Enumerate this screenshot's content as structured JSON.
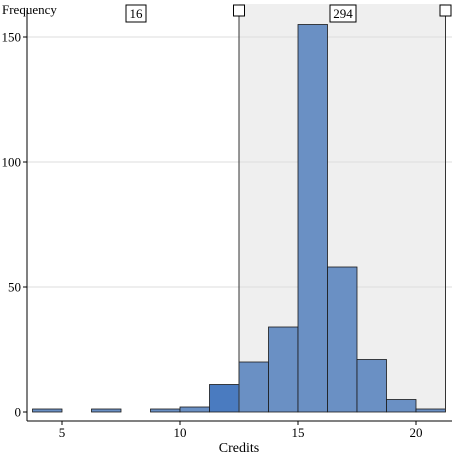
{
  "chart_data": {
    "type": "bar",
    "xlabel": "Credits",
    "ylabel": "Frequency",
    "xlim": [
      3.6,
      21.5
    ],
    "ylim": [
      0,
      160
    ],
    "x_ticks": [
      5,
      10,
      15,
      20
    ],
    "y_ticks": [
      0,
      50,
      100,
      150
    ],
    "grid": "horizontal",
    "bin_width": 1.25,
    "bins": [
      {
        "x0": 3.75,
        "value": 1
      },
      {
        "x0": 5.0,
        "value": 0
      },
      {
        "x0": 6.25,
        "value": 1
      },
      {
        "x0": 7.5,
        "value": 0
      },
      {
        "x0": 8.75,
        "value": 1
      },
      {
        "x0": 10.0,
        "value": 2
      },
      {
        "x0": 11.25,
        "value": 11
      },
      {
        "x0": 12.5,
        "value": 20
      },
      {
        "x0": 13.75,
        "value": 34
      },
      {
        "x0": 15.0,
        "value": 155
      },
      {
        "x0": 16.25,
        "value": 58
      },
      {
        "x0": 17.5,
        "value": 21
      },
      {
        "x0": 18.75,
        "value": 5
      },
      {
        "x0": 20.0,
        "value": 1
      }
    ],
    "selection": {
      "range": [
        12.5,
        21.25
      ],
      "inside_count": "294",
      "outside_count": "16"
    },
    "colors": {
      "bar": "#6a90c4",
      "bar_highlight": "#4a7bc0",
      "bar_stroke": "#1a1a1a",
      "selection_fill": "#efefef",
      "grid": "#dcdcdc"
    }
  }
}
